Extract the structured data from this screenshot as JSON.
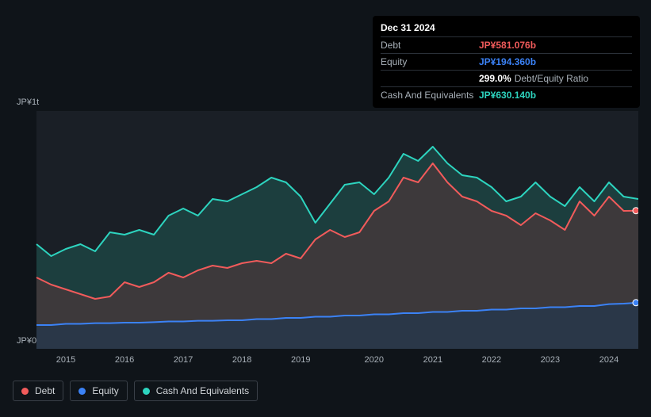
{
  "tooltip": {
    "date": "Dec 31 2024",
    "rows": [
      {
        "label": "Debt",
        "value": "JP¥581.076b",
        "color": "#f15b5b"
      },
      {
        "label": "Equity",
        "value": "JP¥194.360b",
        "color": "#3b82f6"
      },
      {
        "label": "",
        "ratio_value": "299.0%",
        "ratio_label": "Debt/Equity Ratio"
      },
      {
        "label": "Cash And Equivalents",
        "value": "JP¥630.140b",
        "color": "#2dd4bf"
      }
    ]
  },
  "chart": {
    "type": "area",
    "ylabel_top": "JP¥1t",
    "ylabel_bottom": "JP¥0",
    "ylim": [
      0,
      1000
    ],
    "plot_bg": "#1a1f26",
    "x_categories": [
      "2015",
      "2016",
      "2017",
      "2018",
      "2019",
      "2020",
      "2021",
      "2022",
      "2023",
      "2024"
    ],
    "series": {
      "cash": {
        "name": "Cash And Equivalents",
        "color": "#2dd4bf",
        "fill": "#1f5752",
        "fill_opacity": 0.55,
        "line_width": 2,
        "values": [
          440,
          390,
          420,
          440,
          410,
          490,
          480,
          500,
          480,
          560,
          590,
          560,
          630,
          620,
          650,
          680,
          720,
          700,
          640,
          530,
          610,
          690,
          700,
          650,
          720,
          820,
          790,
          850,
          780,
          730,
          720,
          680,
          620,
          640,
          700,
          640,
          600,
          680,
          620,
          700,
          640,
          630
        ]
      },
      "debt": {
        "name": "Debt",
        "color": "#f15b5b",
        "fill": "#5a3438",
        "fill_opacity": 0.55,
        "line_width": 2,
        "values": [
          300,
          270,
          250,
          230,
          210,
          220,
          280,
          260,
          280,
          320,
          300,
          330,
          350,
          340,
          360,
          370,
          360,
          400,
          380,
          460,
          500,
          470,
          490,
          580,
          620,
          720,
          700,
          780,
          700,
          640,
          620,
          580,
          560,
          520,
          570,
          540,
          500,
          620,
          560,
          640,
          580,
          581
        ]
      },
      "equity": {
        "name": "Equity",
        "color": "#3b82f6",
        "fill": "#22364f",
        "fill_opacity": 0.7,
        "line_width": 2,
        "values": [
          100,
          100,
          105,
          105,
          108,
          108,
          110,
          110,
          112,
          115,
          115,
          118,
          118,
          120,
          120,
          125,
          125,
          130,
          130,
          135,
          135,
          140,
          140,
          145,
          145,
          150,
          150,
          155,
          155,
          160,
          160,
          165,
          165,
          170,
          170,
          175,
          175,
          180,
          180,
          188,
          190,
          194
        ]
      }
    }
  },
  "legend": {
    "items": [
      {
        "name": "Debt",
        "color": "#f15b5b"
      },
      {
        "name": "Equity",
        "color": "#3b82f6"
      },
      {
        "name": "Cash And Equivalents",
        "color": "#2dd4bf"
      }
    ]
  },
  "colors": {
    "bg": "#0f1419",
    "plot_bg": "#1a1f26",
    "text_muted": "#a8b0b8",
    "border": "#3a4048"
  }
}
